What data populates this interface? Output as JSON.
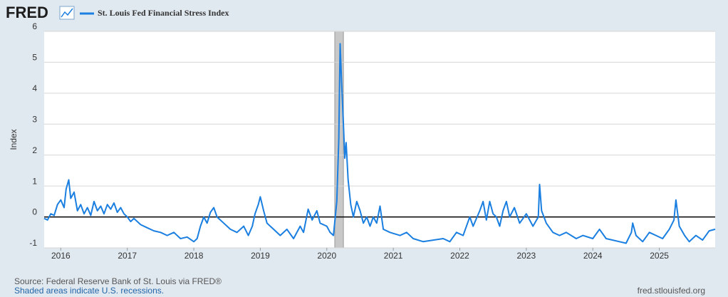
{
  "brand": "FRED",
  "chart_data": {
    "type": "line",
    "title": "St. Louis Fed Financial Stress Index",
    "y_label": "Index",
    "source": "Source: Federal Reserve Bank of St. Louis via FRED®",
    "recession_note": "Shaded areas indicate U.S. recessions.",
    "site": "fred.stlouisfed.org",
    "xlim": [
      2015.75,
      2025.84
    ],
    "xticks": [
      {
        "value": 2016,
        "label": "2016"
      },
      {
        "value": 2017,
        "label": "2017"
      },
      {
        "value": 2018,
        "label": "2018"
      },
      {
        "value": 2019,
        "label": "2019"
      },
      {
        "value": 2020,
        "label": "2020"
      },
      {
        "value": 2021,
        "label": "2021"
      },
      {
        "value": 2022,
        "label": "2022"
      },
      {
        "value": 2023,
        "label": "2023"
      },
      {
        "value": 2024,
        "label": "2024"
      },
      {
        "value": 2025,
        "label": "2025"
      }
    ],
    "ylim": [
      -1,
      6
    ],
    "yticks": [
      -1,
      0,
      1,
      2,
      3,
      4,
      5,
      6
    ],
    "grid": true,
    "reference_line": 0,
    "recessions": [
      [
        2020.12,
        2020.25
      ]
    ],
    "series": [
      {
        "name": "St. Louis Fed Financial Stress Index",
        "color": "#1a7fe0",
        "x": [
          2015.75,
          2015.8,
          2015.85,
          2015.9,
          2015.95,
          2016.0,
          2016.05,
          2016.08,
          2016.12,
          2016.15,
          2016.2,
          2016.25,
          2016.3,
          2016.35,
          2016.4,
          2016.45,
          2016.5,
          2016.55,
          2016.6,
          2016.65,
          2016.7,
          2016.75,
          2016.8,
          2016.85,
          2016.9,
          2016.95,
          2017.0,
          2017.05,
          2017.1,
          2017.2,
          2017.3,
          2017.4,
          2017.5,
          2017.6,
          2017.7,
          2017.8,
          2017.9,
          2018.0,
          2018.05,
          2018.1,
          2018.15,
          2018.2,
          2018.25,
          2018.3,
          2018.35,
          2018.45,
          2018.55,
          2018.65,
          2018.75,
          2018.82,
          2018.88,
          2018.92,
          2018.97,
          2019.0,
          2019.05,
          2019.1,
          2019.2,
          2019.3,
          2019.4,
          2019.5,
          2019.6,
          2019.65,
          2019.72,
          2019.78,
          2019.85,
          2019.9,
          2020.0,
          2020.05,
          2020.1,
          2020.15,
          2020.18,
          2020.2,
          2020.22,
          2020.25,
          2020.27,
          2020.29,
          2020.32,
          2020.36,
          2020.4,
          2020.45,
          2020.5,
          2020.55,
          2020.6,
          2020.65,
          2020.7,
          2020.75,
          2020.8,
          2020.85,
          2020.95,
          2021.1,
          2021.2,
          2021.3,
          2021.45,
          2021.6,
          2021.75,
          2021.85,
          2021.95,
          2022.05,
          2022.15,
          2022.2,
          2022.3,
          2022.35,
          2022.4,
          2022.45,
          2022.5,
          2022.55,
          2022.6,
          2022.65,
          2022.7,
          2022.75,
          2022.82,
          2022.9,
          2023.0,
          2023.1,
          2023.18,
          2023.2,
          2023.23,
          2023.3,
          2023.4,
          2023.5,
          2023.6,
          2023.75,
          2023.85,
          2024.0,
          2024.1,
          2024.2,
          2024.3,
          2024.4,
          2024.5,
          2024.58,
          2024.6,
          2024.65,
          2024.75,
          2024.85,
          2024.95,
          2025.05,
          2025.15,
          2025.22,
          2025.25,
          2025.3,
          2025.38,
          2025.45,
          2025.55,
          2025.65,
          2025.75,
          2025.84
        ],
        "values": [
          -0.05,
          -0.1,
          0.1,
          0.05,
          0.4,
          0.55,
          0.3,
          0.9,
          1.2,
          0.6,
          0.8,
          0.2,
          0.4,
          0.1,
          0.3,
          0.05,
          0.5,
          0.2,
          0.35,
          0.1,
          0.4,
          0.25,
          0.45,
          0.15,
          0.3,
          0.1,
          0.0,
          -0.15,
          -0.05,
          -0.25,
          -0.35,
          -0.45,
          -0.5,
          -0.6,
          -0.5,
          -0.7,
          -0.65,
          -0.8,
          -0.7,
          -0.3,
          0.0,
          -0.2,
          0.15,
          0.3,
          0.0,
          -0.2,
          -0.4,
          -0.5,
          -0.3,
          -0.6,
          -0.3,
          0.1,
          0.4,
          0.65,
          0.2,
          -0.2,
          -0.4,
          -0.6,
          -0.4,
          -0.7,
          -0.3,
          -0.5,
          0.25,
          -0.1,
          0.2,
          -0.2,
          -0.3,
          -0.5,
          -0.6,
          0.5,
          2.5,
          5.6,
          4.5,
          3.0,
          1.9,
          2.4,
          1.2,
          0.4,
          0.0,
          0.5,
          0.2,
          -0.2,
          0.0,
          -0.3,
          0.0,
          -0.2,
          0.35,
          -0.4,
          -0.5,
          -0.6,
          -0.5,
          -0.7,
          -0.8,
          -0.75,
          -0.7,
          -0.8,
          -0.5,
          -0.6,
          0.0,
          -0.3,
          0.2,
          0.5,
          -0.1,
          0.5,
          0.1,
          0.0,
          -0.3,
          0.2,
          0.5,
          0.0,
          0.3,
          -0.2,
          0.1,
          -0.3,
          0.0,
          1.05,
          0.2,
          -0.2,
          -0.5,
          -0.6,
          -0.5,
          -0.7,
          -0.6,
          -0.7,
          -0.4,
          -0.7,
          -0.75,
          -0.8,
          -0.85,
          -0.5,
          -0.2,
          -0.6,
          -0.8,
          -0.5,
          -0.6,
          -0.7,
          -0.4,
          -0.1,
          0.55,
          -0.3,
          -0.6,
          -0.8,
          -0.6,
          -0.75,
          -0.45,
          -0.4
        ]
      }
    ]
  }
}
